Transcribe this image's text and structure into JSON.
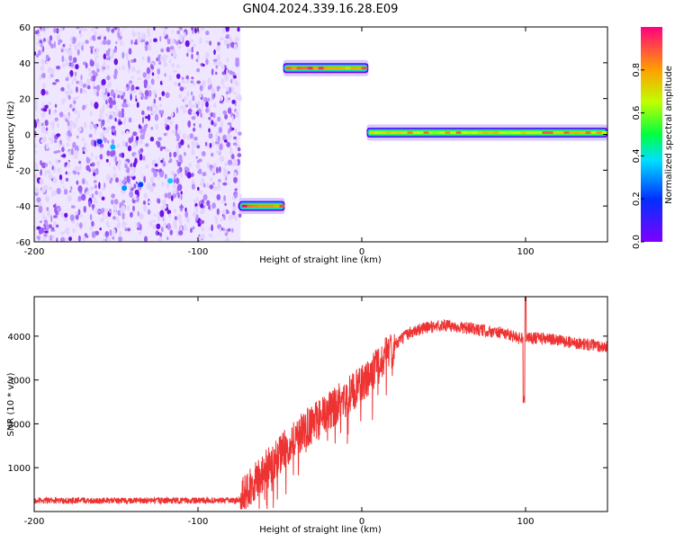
{
  "title": "GN04.2024.339.16.28.E09",
  "chart_data": [
    {
      "type": "heatmap",
      "title": "GN04.2024.339.16.28.E09",
      "xlabel": "Height of straight line (km)",
      "ylabel": "Frequency (Hz)",
      "xlim": [
        -200,
        150
      ],
      "ylim": [
        -60,
        60
      ],
      "xticks": [
        "-200",
        "-100",
        "0",
        "100"
      ],
      "yticks": [
        "60",
        "40",
        "20",
        "0",
        "-20",
        "-40",
        "-60"
      ],
      "colorbar": {
        "label": "Normalized spectral amplitude",
        "range": [
          0,
          1
        ],
        "ticks": [
          "0.0",
          "0.2",
          "0.4",
          "0.6",
          "0.8"
        ]
      },
      "features": [
        {
          "desc": "scattered noise",
          "x_range": [
            -200,
            -74
          ],
          "freq_range": [
            -60,
            60
          ],
          "amplitude": 0.1
        },
        {
          "desc": "signal segment",
          "x_range": [
            -75,
            -47
          ],
          "freq": -40,
          "amplitude": 0.9
        },
        {
          "desc": "signal segment",
          "x_range": [
            -48,
            4
          ],
          "freq": 37,
          "amplitude": 0.85
        },
        {
          "desc": "signal segment",
          "x_range": [
            3,
            150
          ],
          "freq": 1,
          "amplitude": 0.75
        }
      ]
    },
    {
      "type": "line",
      "xlabel": "Height of straight line (km)",
      "ylabel": "SNR (10 * v/v)",
      "xlim": [
        -200,
        150
      ],
      "ylim": [
        0,
        4900
      ],
      "xticks": [
        "-200",
        "-100",
        "0",
        "100"
      ],
      "yticks": [
        "1000",
        "2000",
        "3000",
        "4000"
      ],
      "color": "#ee3333",
      "x": [
        -200,
        -150,
        -100,
        -75,
        -70,
        -60,
        -50,
        -40,
        -30,
        -20,
        -10,
        0,
        10,
        20,
        30,
        40,
        50,
        60,
        70,
        80,
        90,
        95,
        100,
        105,
        110,
        120,
        130,
        140,
        150
      ],
      "y": [
        250,
        250,
        250,
        250,
        500,
        900,
        1300,
        1700,
        2000,
        2300,
        2600,
        2900,
        3300,
        3800,
        4100,
        4200,
        4250,
        4200,
        4150,
        4100,
        4050,
        3950,
        4000,
        3950,
        3950,
        3900,
        3850,
        3800,
        3750
      ]
    }
  ]
}
